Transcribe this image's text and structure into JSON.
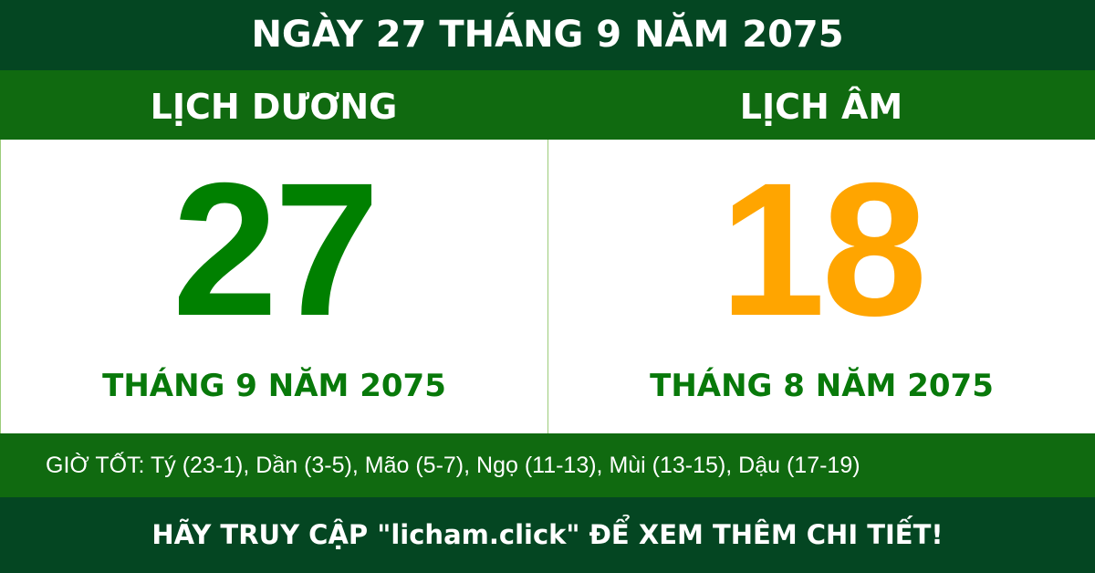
{
  "title": "NGÀY 27 THÁNG 9 NĂM 2075",
  "solar": {
    "label": "LỊCH DƯƠNG",
    "day": "27",
    "month_year": "THÁNG 9 NĂM 2075"
  },
  "lunar": {
    "label": "LỊCH ÂM",
    "day": "18",
    "month_year": "THÁNG 8 NĂM 2075"
  },
  "good_hours": "GIỜ TỐT: Tý (23-1), Dần (3-5), Mão (5-7), Ngọ (11-13), Mùi (13-15), Dậu (17-19)",
  "footer": "HÃY TRUY CẬP \"licham.click\" ĐỂ XEM THÊM CHI TIẾT!",
  "colors": {
    "dark_green": "#044622",
    "green": "#106a10",
    "solar_digit": "#008000",
    "lunar_digit": "#ffa500"
  }
}
